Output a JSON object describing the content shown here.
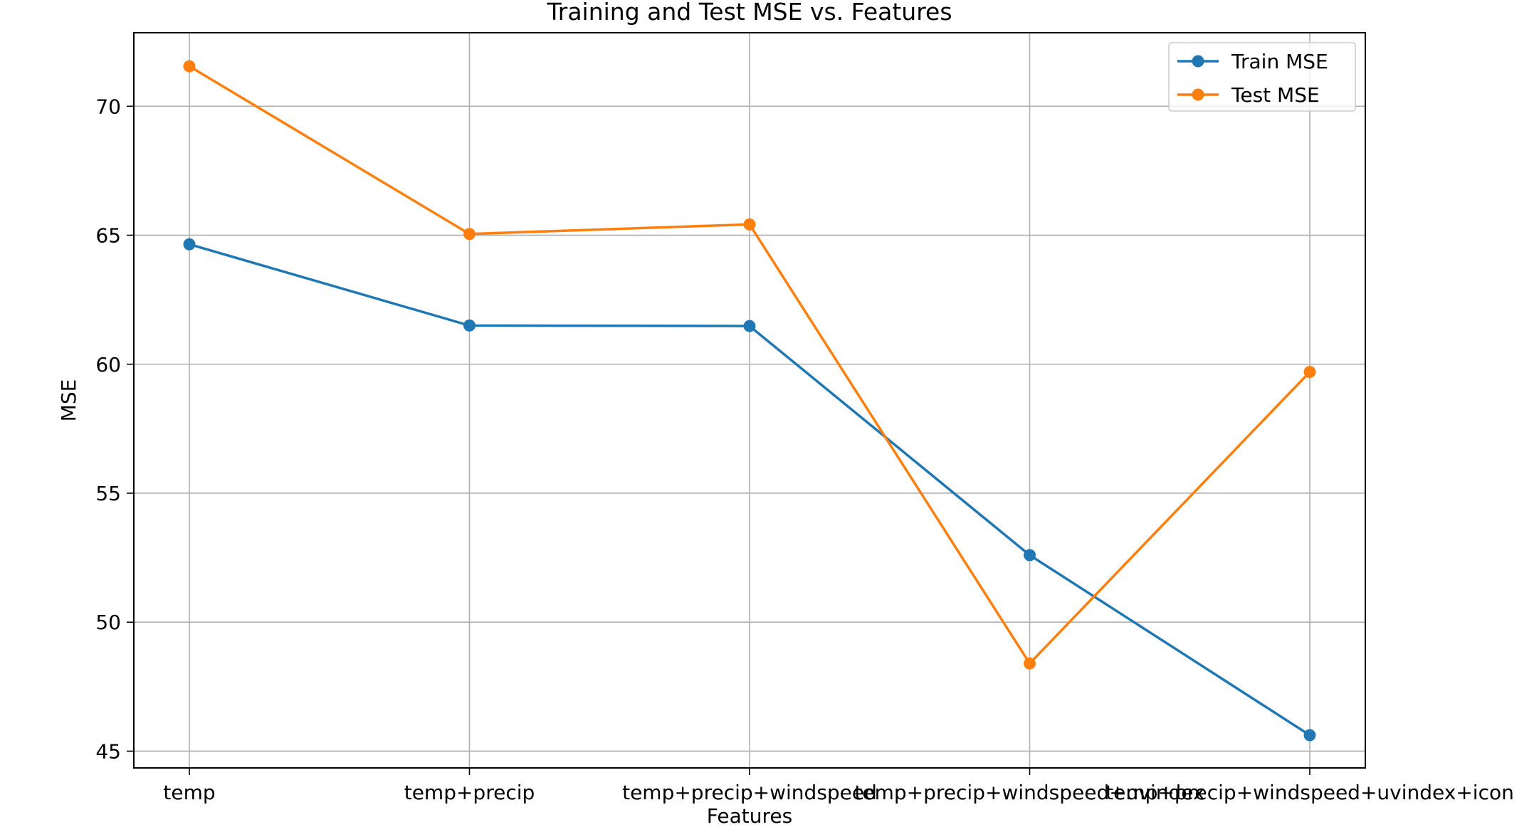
{
  "chart_data": {
    "type": "line",
    "title": "Training and Test MSE vs. Features",
    "xlabel": "Features",
    "ylabel": "MSE",
    "categories": [
      "temp",
      "temp+precip",
      "temp+precip+windspeed",
      "temp+precip+windspeed+uvindex",
      "temp+precip+windspeed+uvindex+icon"
    ],
    "series": [
      {
        "name": "Train MSE",
        "color": "#1f77b4",
        "marker": "circle",
        "values": [
          64.65,
          61.5,
          61.48,
          52.6,
          45.62
        ]
      },
      {
        "name": "Test MSE",
        "color": "#ff7f0e",
        "marker": "circle",
        "values": [
          71.55,
          65.05,
          65.42,
          48.4,
          59.7
        ]
      }
    ],
    "ylim": [
      44.35,
      72.85
    ],
    "yticks": [
      45,
      50,
      55,
      60,
      65,
      70
    ],
    "grid": true,
    "legend": "top-right"
  }
}
